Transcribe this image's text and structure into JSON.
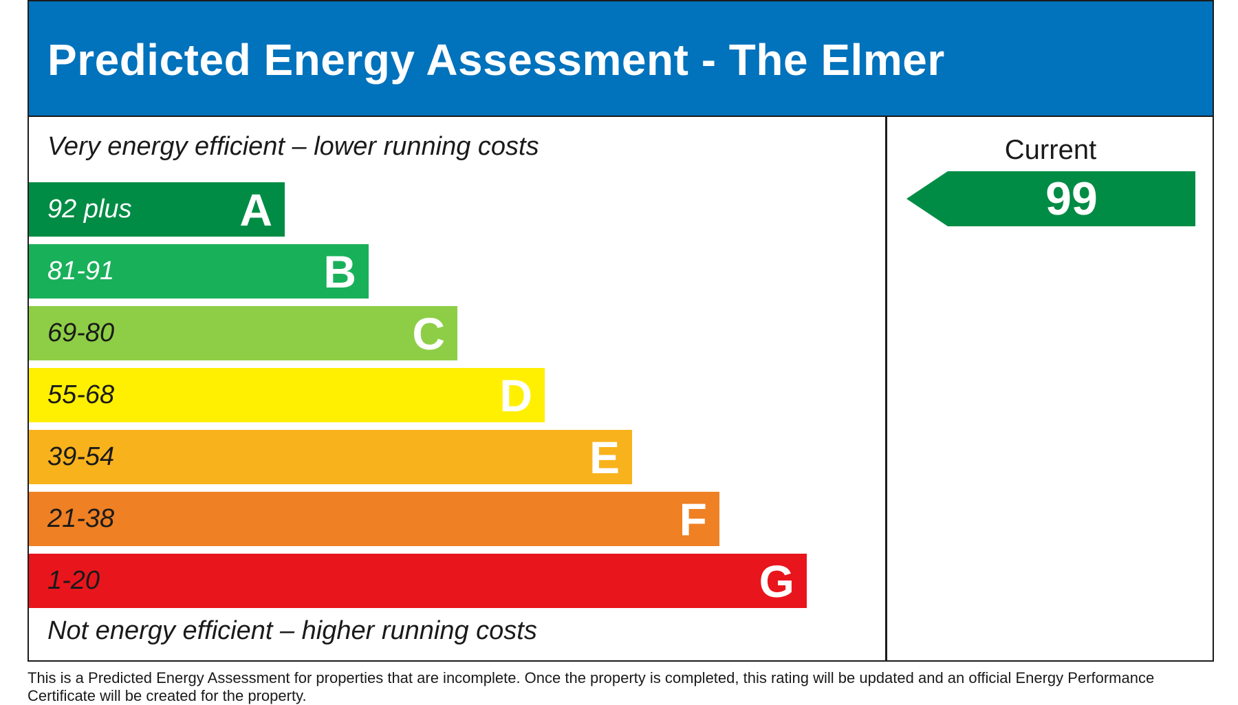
{
  "header": {
    "title": "Predicted Energy Assessment - The Elmer",
    "bg_color": "#0172bc"
  },
  "labels": {
    "top": "Very energy efficient – lower running costs",
    "bottom": "Not energy efficient – higher running costs",
    "current_heading": "Current"
  },
  "footnote": "This is a Predicted Energy Assessment for properties that are incomplete. Once the property is completed, this rating will be updated and an official Energy Performance Certificate will be created for the property.",
  "chart_data": {
    "type": "bar",
    "categories": [
      "A",
      "B",
      "C",
      "D",
      "E",
      "F",
      "G"
    ],
    "ranges": [
      "92 plus",
      "81-91",
      "69-80",
      "55-68",
      "39-54",
      "21-38",
      "1-20"
    ],
    "colors": [
      "#008c44",
      "#19b05a",
      "#8dce46",
      "#ffef00",
      "#f8b21c",
      "#ef8023",
      "#e9151c"
    ],
    "range_text_colors": [
      "#ffffff",
      "#ffffff",
      "#1a1a1a",
      "#1a1a1a",
      "#1a1a1a",
      "#1a1a1a",
      "#1a1a1a"
    ],
    "current": {
      "value": 99,
      "band": "A",
      "color": "#008c44"
    }
  }
}
